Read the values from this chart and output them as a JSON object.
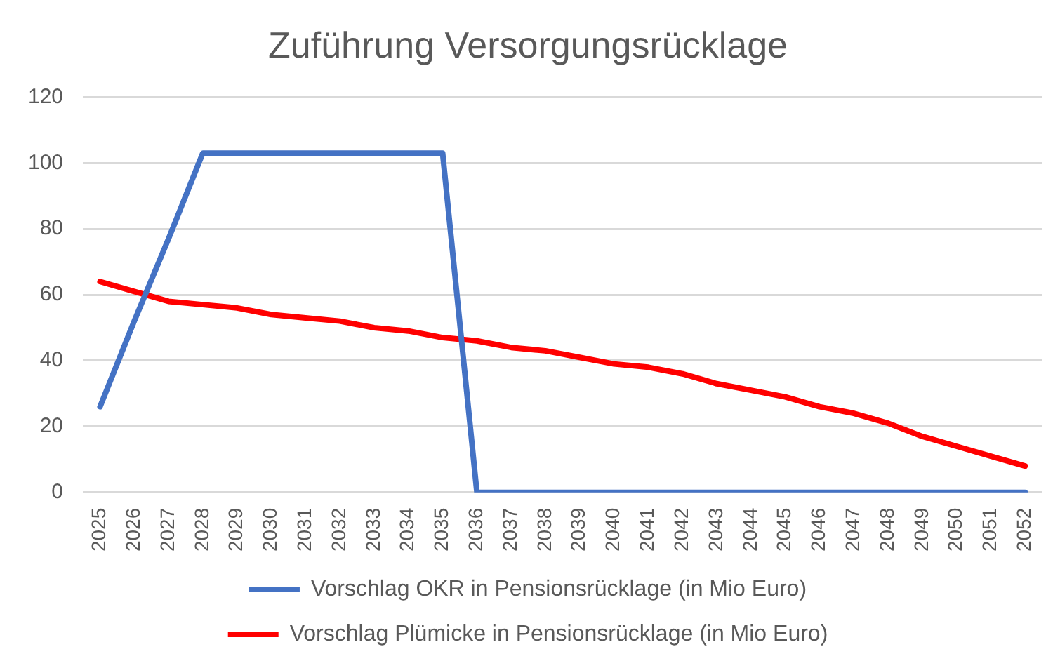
{
  "chart_data": {
    "type": "line",
    "title": "Zuführung Versorgungsrücklage",
    "categories": [
      "2025",
      "2026",
      "2027",
      "2028",
      "2029",
      "2030",
      "2031",
      "2032",
      "2033",
      "2034",
      "2035",
      "2036",
      "2037",
      "2038",
      "2039",
      "2040",
      "2041",
      "2042",
      "2043",
      "2044",
      "2045",
      "2046",
      "2047",
      "2048",
      "2049",
      "2050",
      "2051",
      "2052"
    ],
    "series": [
      {
        "name": "Vorschlag OKR in Pensionsrücklage (in Mio Euro)",
        "color": "#4472c4",
        "values": [
          26,
          52,
          77,
          103,
          103,
          103,
          103,
          103,
          103,
          103,
          103,
          0,
          0,
          0,
          0,
          0,
          0,
          0,
          0,
          0,
          0,
          0,
          0,
          0,
          0,
          0,
          0,
          0
        ]
      },
      {
        "name": "Vorschlag Plümicke in Pensionsrücklage (in Mio Euro)",
        "color": "#ff0000",
        "values": [
          64,
          61,
          58,
          57,
          56,
          54,
          53,
          52,
          50,
          49,
          47,
          46,
          44,
          43,
          41,
          39,
          38,
          36,
          33,
          31,
          29,
          26,
          24,
          21,
          17,
          14,
          11,
          8
        ]
      }
    ],
    "ylim": [
      0,
      120
    ],
    "yticks": [
      0,
      20,
      40,
      60,
      80,
      100,
      120
    ],
    "grid": "y",
    "legend": "bottom",
    "marker": "none",
    "line_style": "solid"
  }
}
